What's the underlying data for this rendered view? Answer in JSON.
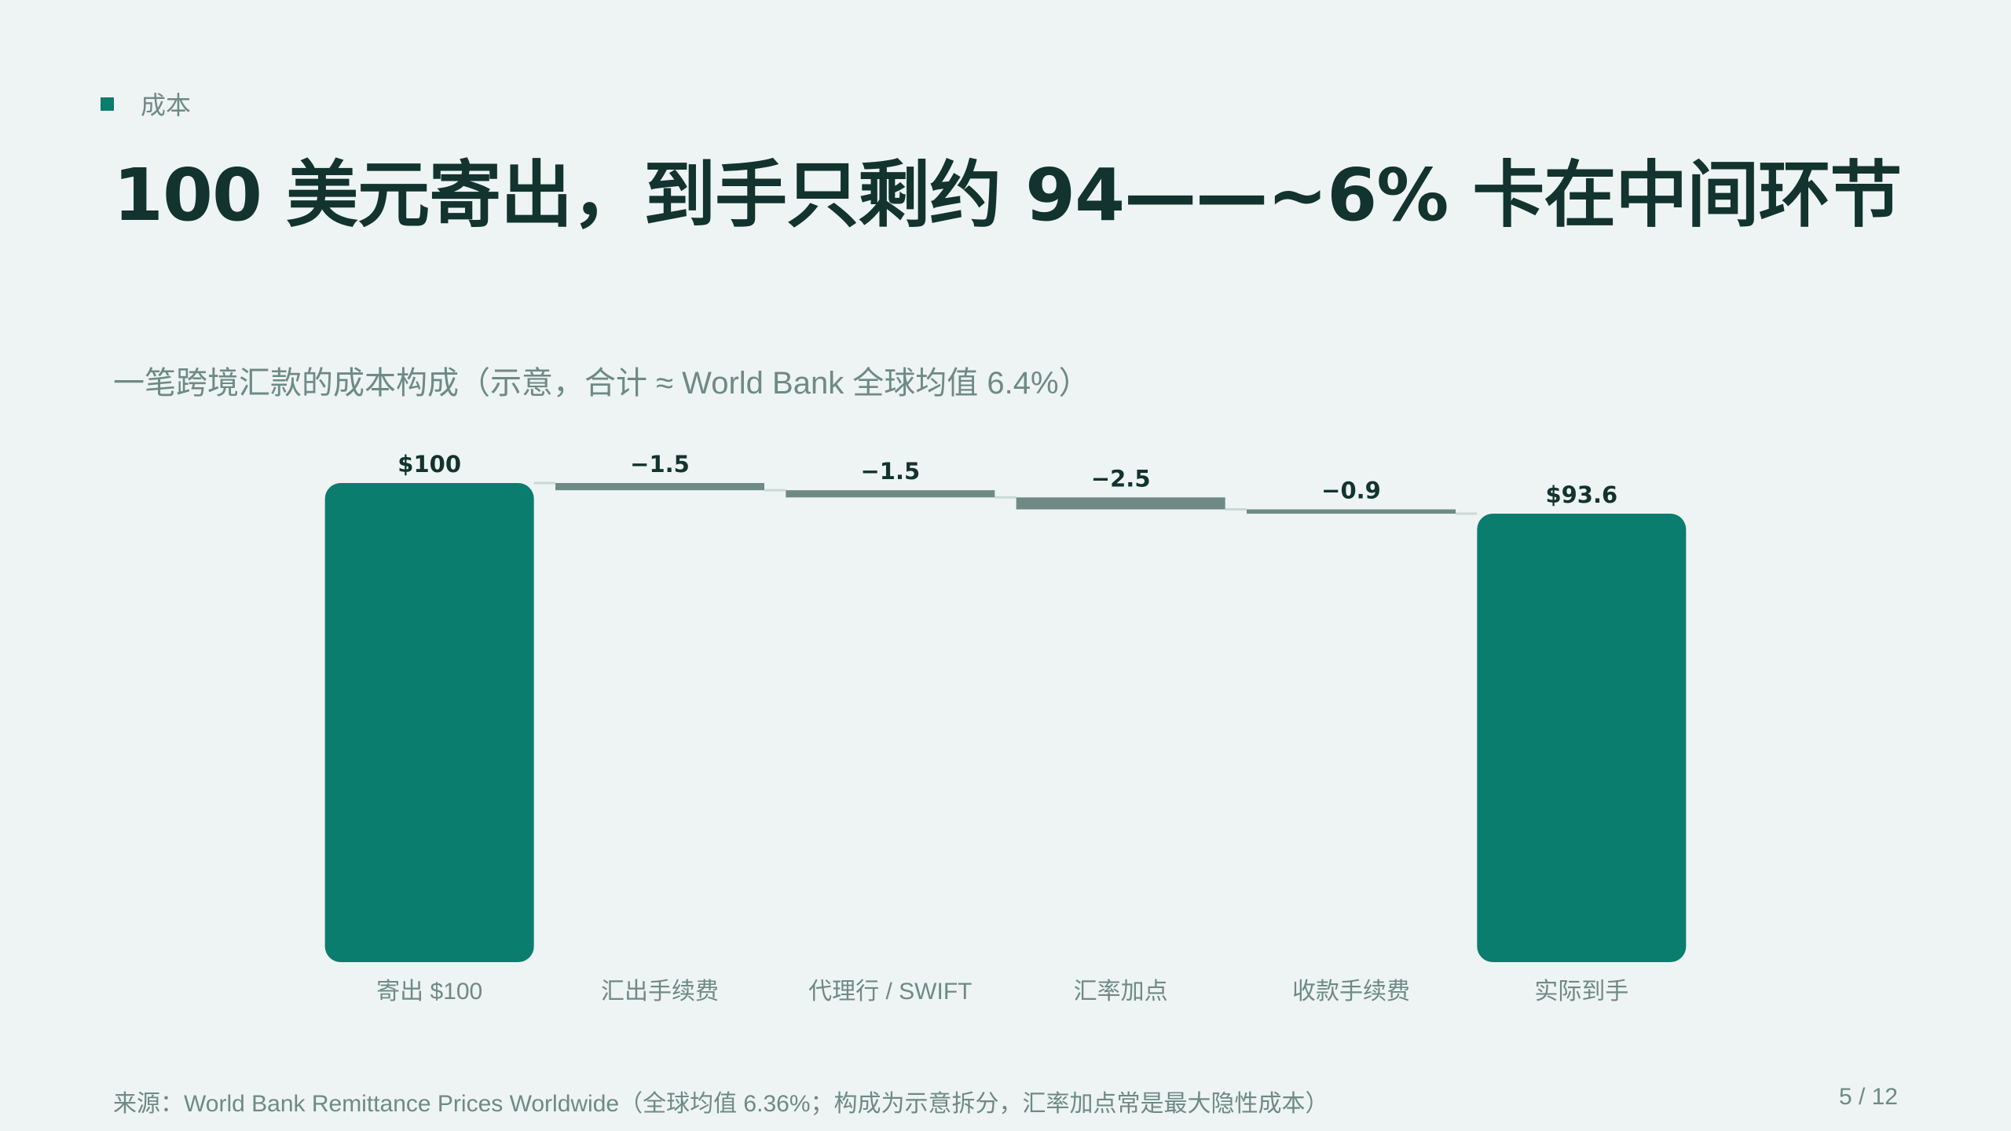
{
  "kicker": "成本",
  "title": "100 美元寄出，到手只剩约 94——~6% 卡在中间环节",
  "subtitle": "一笔跨境汇款的成本构成（示意，合计 ≈ World Bank 全球均值 6.4%）",
  "footer": {
    "source": "来源：World Bank Remittance Prices Worldwide（全球均值 6.36%；构成为示意拆分，汇率加点常是最大隐性成本）",
    "page": "5 / 12"
  },
  "colors": {
    "total": "#0a7d6e",
    "cost": "#6f8a84",
    "connector": "#c9d9d6",
    "label": "#12332e",
    "axis_label": "#6e8a85"
  },
  "chart_data": {
    "type": "bar",
    "subtype": "waterfall",
    "categories": [
      "寄出 $100",
      "汇出手续费",
      "代理行 / SWIFT",
      "汇率加点",
      "收款手续费",
      "实际到手"
    ],
    "values": [
      100,
      -1.5,
      -1.5,
      -2.5,
      -0.9,
      93.6
    ],
    "kinds": [
      "total",
      "delta",
      "delta",
      "delta",
      "delta",
      "total"
    ],
    "data_labels": [
      "$100",
      "−1.5",
      "−1.5",
      "−2.5",
      "−0.9",
      "$93.6"
    ],
    "ylim": [
      0,
      100
    ],
    "grid": false,
    "legend": "none"
  }
}
